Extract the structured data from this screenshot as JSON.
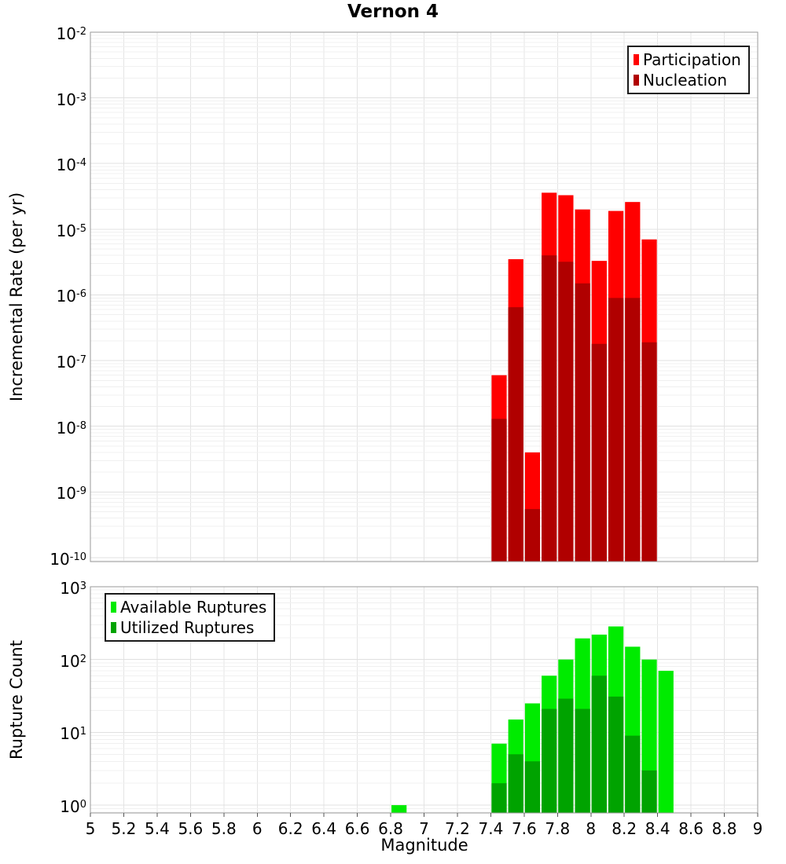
{
  "title": "Vernon 4",
  "x_axis": {
    "label": "Magnitude",
    "min": 5,
    "max": 9,
    "ticks": [
      "5",
      "5.2",
      "5.4",
      "5.6",
      "5.8",
      "6",
      "6.2",
      "6.4",
      "6.6",
      "6.8",
      "7",
      "7.2",
      "7.4",
      "7.6",
      "7.8",
      "8",
      "8.2",
      "8.4",
      "8.6",
      "8.8",
      "9"
    ]
  },
  "chart_data": [
    {
      "id": "incremental-rate",
      "type": "bar",
      "scale": "log-y",
      "stacking": "overlay",
      "title": "Vernon 4",
      "ylabel": "Incremental Rate (per yr)",
      "xlabel": "",
      "ylim_log10": [
        -10.06,
        -2
      ],
      "yticks_exponents": [
        -2,
        -3,
        -4,
        -5,
        -6,
        -7,
        -8,
        -9,
        -10
      ],
      "bin_width": 0.1,
      "grid": true,
      "legend_position": "top-right",
      "categories": [
        7.45,
        7.55,
        7.65,
        7.75,
        7.85,
        7.95,
        8.05,
        8.15,
        8.25,
        8.35
      ],
      "series": [
        {
          "name": "Participation",
          "color": "#ff0000",
          "values": [
            6e-08,
            3.5e-06,
            4e-09,
            3.6e-05,
            3.3e-05,
            2e-05,
            3.3e-06,
            1.9e-05,
            2.6e-05,
            7e-06
          ]
        },
        {
          "name": "Nucleation",
          "color": "#b00000",
          "values": [
            1.3e-08,
            6.5e-07,
            5.5e-10,
            4e-06,
            3.2e-06,
            1.5e-06,
            1.8e-07,
            9e-07,
            9e-07,
            1.9e-07
          ]
        }
      ]
    },
    {
      "id": "rupture-count",
      "type": "bar",
      "scale": "log-y",
      "stacking": "overlay",
      "ylabel": "Rupture Count",
      "xlabel": "Magnitude",
      "ylim_log10": [
        -0.107,
        3
      ],
      "yticks_exponents": [
        3,
        2,
        1,
        0
      ],
      "bin_width": 0.1,
      "grid": true,
      "legend_position": "top-left",
      "categories": [
        6.85,
        7.45,
        7.55,
        7.65,
        7.75,
        7.85,
        7.95,
        8.05,
        8.15,
        8.25,
        8.35,
        8.45
      ],
      "series": [
        {
          "name": "Available Ruptures",
          "color": "#00eb00",
          "values": [
            1,
            7,
            15,
            25,
            60,
            100,
            195,
            220,
            285,
            150,
            100,
            70
          ]
        },
        {
          "name": "Utilized Ruptures",
          "color": "#00a300",
          "values": [
            0,
            2,
            5,
            4,
            21,
            29,
            21,
            60,
            31,
            9,
            3,
            0
          ]
        }
      ]
    }
  ],
  "style": {
    "axis_border_color": "#9a9a9a",
    "grid_major_color": "#e0e0e0",
    "grid_minor_color": "#f0f0f0",
    "grid_vertical_color": "#e4e4e4",
    "tick_color": "#555555"
  }
}
